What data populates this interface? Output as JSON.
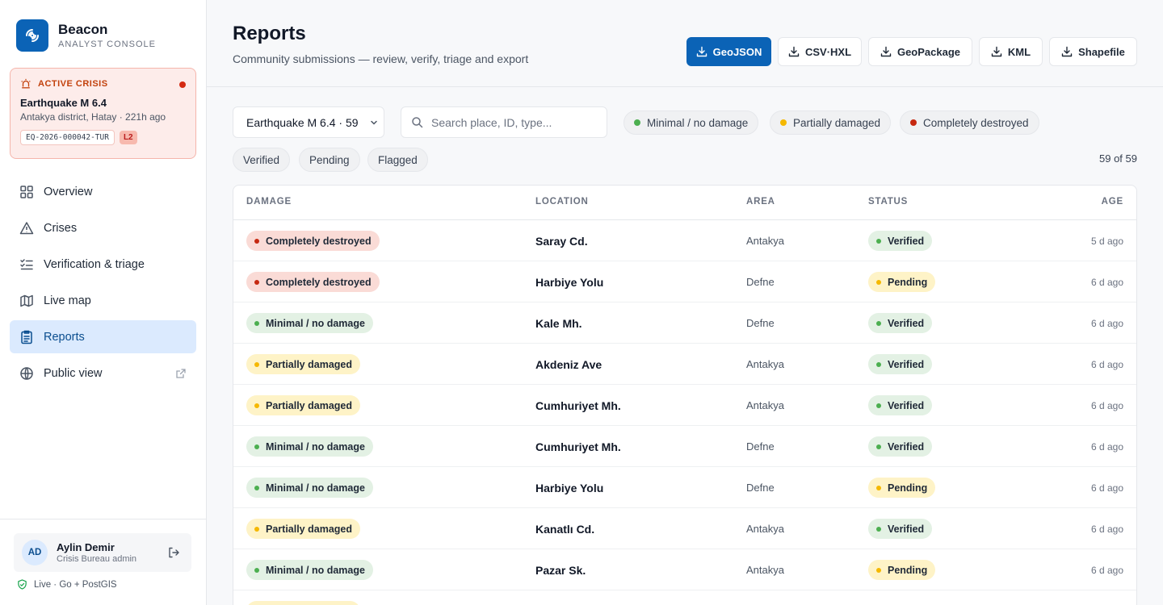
{
  "brand": {
    "name": "Beacon",
    "subtitle": "ANALYST CONSOLE",
    "color": "#0b63b6"
  },
  "crisis": {
    "heading": "ACTIVE CRISIS",
    "title": "Earthquake M 6.4",
    "location": "Antakya district, Hatay · 221h ago",
    "code": "EQ-2026-000042-TUR",
    "level": "L2"
  },
  "nav": [
    {
      "label": "Overview",
      "icon": "grid-icon"
    },
    {
      "label": "Crises",
      "icon": "warning-icon"
    },
    {
      "label": "Verification & triage",
      "icon": "checklist-icon"
    },
    {
      "label": "Live map",
      "icon": "map-icon"
    },
    {
      "label": "Reports",
      "icon": "clipboard-icon",
      "active": true
    },
    {
      "label": "Public view",
      "icon": "globe-icon",
      "external": true
    }
  ],
  "user": {
    "initials": "AD",
    "name": "Aylin Demir",
    "role": "Crisis Bureau admin"
  },
  "status": "Live · Go + PostGIS",
  "header": {
    "title": "Reports",
    "subtitle": "Community submissions — review, verify, triage and export"
  },
  "exports": [
    "GeoJSON",
    "CSV·HXL",
    "GeoPackage",
    "KML",
    "Shapefile"
  ],
  "filters": {
    "crisis_select": "Earthquake M 6.4 · 59",
    "search_placeholder": "Search place, ID, type...",
    "damage_chips": [
      {
        "label": "Minimal / no damage",
        "color": "#4caf50"
      },
      {
        "label": "Partially damaged",
        "color": "#f5b800"
      },
      {
        "label": "Completely destroyed",
        "color": "#c62810"
      }
    ],
    "status_chips": [
      "Verified",
      "Pending",
      "Flagged"
    ],
    "count": "59 of 59"
  },
  "table": {
    "headers": {
      "damage": "DAMAGE",
      "location": "LOCATION",
      "area": "AREA",
      "status": "STATUS",
      "age": "AGE"
    },
    "rows": [
      {
        "damage": "Completely destroyed",
        "damage_level": "destroyed",
        "location": "Saray Cd.",
        "area": "Antakya",
        "status": "Verified",
        "age": "5 d ago"
      },
      {
        "damage": "Completely destroyed",
        "damage_level": "destroyed",
        "location": "Harbiye Yolu",
        "area": "Defne",
        "status": "Pending",
        "age": "6 d ago"
      },
      {
        "damage": "Minimal / no damage",
        "damage_level": "minimal",
        "location": "Kale Mh.",
        "area": "Defne",
        "status": "Verified",
        "age": "6 d ago"
      },
      {
        "damage": "Partially damaged",
        "damage_level": "partial",
        "location": "Akdeniz Ave",
        "area": "Antakya",
        "status": "Verified",
        "age": "6 d ago"
      },
      {
        "damage": "Partially damaged",
        "damage_level": "partial",
        "location": "Cumhuriyet Mh.",
        "area": "Antakya",
        "status": "Verified",
        "age": "6 d ago"
      },
      {
        "damage": "Minimal / no damage",
        "damage_level": "minimal",
        "location": "Cumhuriyet Mh.",
        "area": "Defne",
        "status": "Verified",
        "age": "6 d ago"
      },
      {
        "damage": "Minimal / no damage",
        "damage_level": "minimal",
        "location": "Harbiye Yolu",
        "area": "Defne",
        "status": "Pending",
        "age": "6 d ago"
      },
      {
        "damage": "Partially damaged",
        "damage_level": "partial",
        "location": "Kanatlı Cd.",
        "area": "Antakya",
        "status": "Verified",
        "age": "6 d ago"
      },
      {
        "damage": "Minimal / no damage",
        "damage_level": "minimal",
        "location": "Pazar Sk.",
        "area": "Antakya",
        "status": "Pending",
        "age": "6 d ago"
      },
      {
        "damage": "Partially damaged",
        "damage_level": "partial",
        "location": "",
        "area": "",
        "status": "",
        "age": ""
      }
    ]
  },
  "colors": {
    "destroyed_bg": "#fadbd6",
    "destroyed_dot": "#c62810",
    "partial_bg": "#fef3c7",
    "partial_dot": "#f5b800",
    "minimal_bg": "#e3f1e4",
    "minimal_dot": "#4caf50",
    "verified_bg": "#e3f1e4",
    "verified_dot": "#4caf50",
    "pending_bg": "#fef3c7",
    "pending_dot": "#f5b800"
  }
}
